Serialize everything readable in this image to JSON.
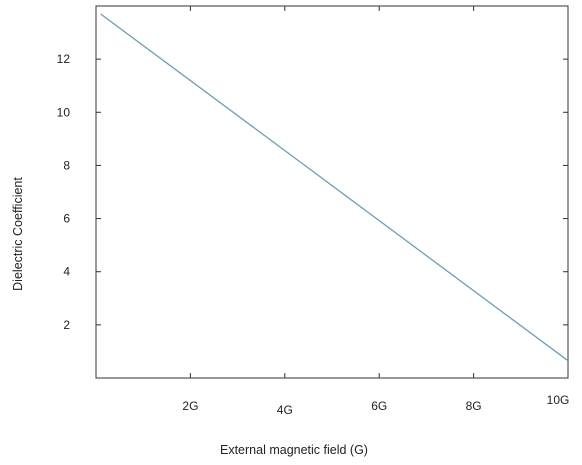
{
  "chart_data": {
    "type": "line",
    "xlabel": "External magnetic field (G)",
    "ylabel": "Dielectric Coefficient",
    "xlim": [
      0,
      10
    ],
    "ylim": [
      0,
      14
    ],
    "x_ticks": [
      {
        "value": 2,
        "label": "2G"
      },
      {
        "value": 4,
        "label": "4G"
      },
      {
        "value": 6,
        "label": "6G"
      },
      {
        "value": 8,
        "label": "8G"
      },
      {
        "value": 10,
        "label": "10G"
      }
    ],
    "y_ticks": [
      {
        "value": 2,
        "label": "2"
      },
      {
        "value": 4,
        "label": "4"
      },
      {
        "value": 6,
        "label": "6"
      },
      {
        "value": 8,
        "label": "8"
      },
      {
        "value": 10,
        "label": "10"
      },
      {
        "value": 12,
        "label": "12"
      }
    ],
    "grid": false,
    "series": [
      {
        "color": "#6a9fb5",
        "x": [
          0.1,
          10
        ],
        "y": [
          13.7,
          0.65
        ]
      }
    ]
  }
}
